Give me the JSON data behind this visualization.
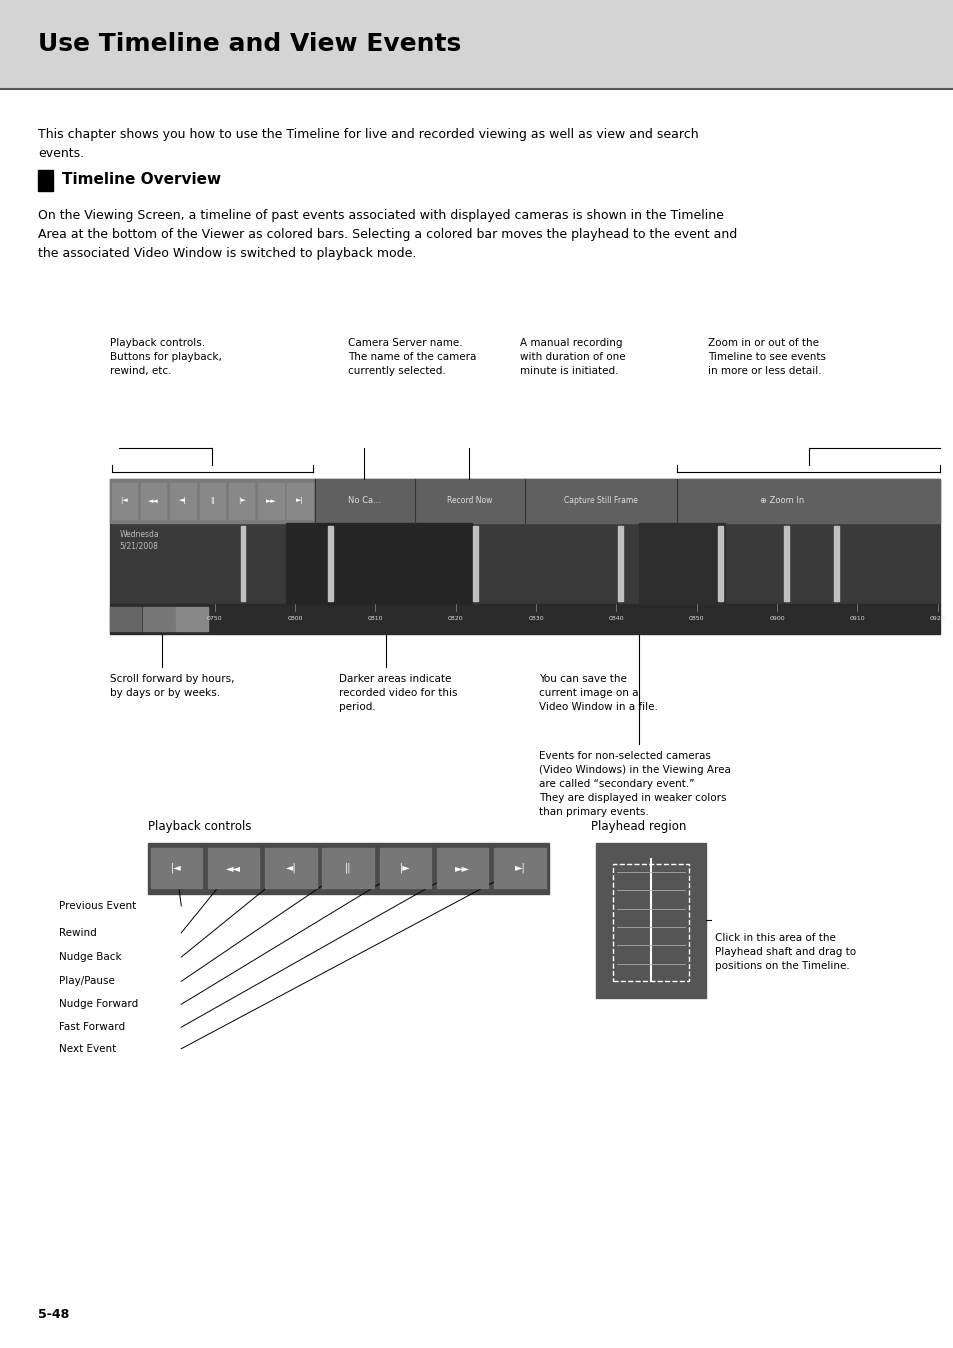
{
  "title": "Use Timeline and View Events",
  "title_bg": "#d4d4d4",
  "title_color": "#000000",
  "body_bg": "#ffffff",
  "section_header": "Timeline Overview",
  "intro_text": "This chapter shows you how to use the Timeline for live and recorded viewing as well as view and search\nevents.",
  "body_text": "On the Viewing Screen, a timeline of past events associated with displayed cameras is shown in the Timeline\nArea at the bottom of the Viewer as colored bars. Selecting a colored bar moves the playhead to the event and\nthe associated Video Window is switched to playback mode.",
  "page_number": "5-48",
  "playback_label": "Playback controls",
  "playhead_label": "Playhead region",
  "playback_controls_labels": [
    "Previous Event",
    "Rewind",
    "Nudge Back",
    "Play/Pause",
    "Nudge Forward",
    "Fast Forward",
    "Next Event"
  ],
  "playhead_click_text": "Click in this area of the\nPlayhead shaft and drag to\npositions on the Timeline."
}
